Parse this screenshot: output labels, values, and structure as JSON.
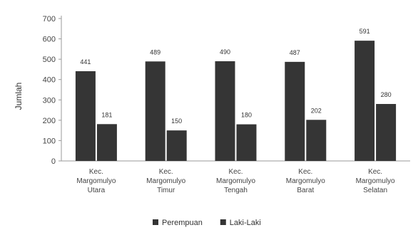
{
  "chart_data": {
    "type": "bar",
    "title": "",
    "xlabel": "",
    "ylabel": "Jumlah",
    "ylim": [
      0,
      700
    ],
    "yticks": [
      "0",
      "100",
      "200",
      "300",
      "400",
      "500",
      "600",
      "700"
    ],
    "grid": false,
    "legend_position": "bottom",
    "categories": [
      [
        "Kec.",
        "Margomulyo",
        "Utara"
      ],
      [
        "Kec.",
        "Margomulyo",
        "Timur"
      ],
      [
        "Kec.",
        "Margomulyo",
        "Tengah"
      ],
      [
        "Kec.",
        "Margomulyo",
        "Barat"
      ],
      [
        "Kec.",
        "Margomulyo",
        "Selatan"
      ]
    ],
    "series": [
      {
        "name": "Perempuan",
        "color": "#353535",
        "values": [
          441,
          489,
          490,
          487,
          591
        ],
        "labels": [
          "441",
          "489",
          "490",
          "487",
          "591"
        ]
      },
      {
        "name": "Laki-Laki",
        "color": "#353535",
        "values": [
          181,
          150,
          180,
          202,
          280
        ],
        "labels": [
          "181",
          "150",
          "180",
          "202",
          "280"
        ]
      }
    ],
    "colors": {
      "bar": "#353535",
      "axis": "#9a9a9a",
      "text": "#444444"
    }
  }
}
